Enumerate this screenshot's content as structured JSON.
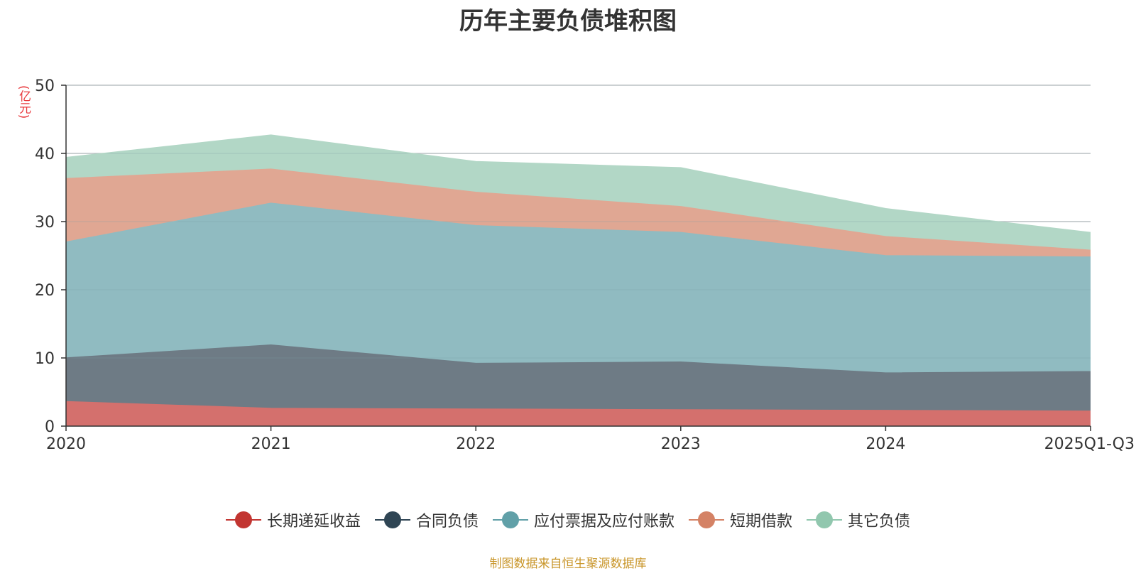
{
  "chart_data": {
    "type": "area",
    "stacked": true,
    "title": "历年主要负债堆积图",
    "ylabel": "(亿元)",
    "xlabel": "",
    "ylim": [
      0,
      50
    ],
    "yticks": [
      0,
      10,
      20,
      30,
      40,
      50
    ],
    "grid": true,
    "legend_position": "bottom",
    "categories": [
      "2020",
      "2021",
      "2022",
      "2023",
      "2024",
      "2025Q1-Q3"
    ],
    "series": [
      {
        "name": "长期递延收益",
        "color": "#c23531",
        "fill": "#d4706d",
        "values": [
          3.6,
          2.6,
          2.5,
          2.4,
          2.3,
          2.2
        ]
      },
      {
        "name": "合同负债",
        "color": "#2f4554",
        "fill": "#6e7b85",
        "values": [
          6.4,
          9.3,
          6.7,
          7.0,
          5.5,
          5.8
        ]
      },
      {
        "name": "应付票据及应付账款",
        "color": "#61a0a8",
        "fill": "#90bbc1",
        "values": [
          17.0,
          20.8,
          20.2,
          19.0,
          17.2,
          16.8
        ]
      },
      {
        "name": "短期借款",
        "color": "#d48265",
        "fill": "#e0a793",
        "values": [
          9.3,
          5.0,
          4.9,
          3.8,
          2.8,
          1.0
        ]
      },
      {
        "name": "其它负债",
        "color": "#91c7ae",
        "fill": "#b2d7c6",
        "values": [
          3.1,
          5.0,
          4.5,
          5.7,
          4.1,
          2.6
        ]
      }
    ]
  },
  "source_note": "制图数据来自恒生聚源数据库"
}
